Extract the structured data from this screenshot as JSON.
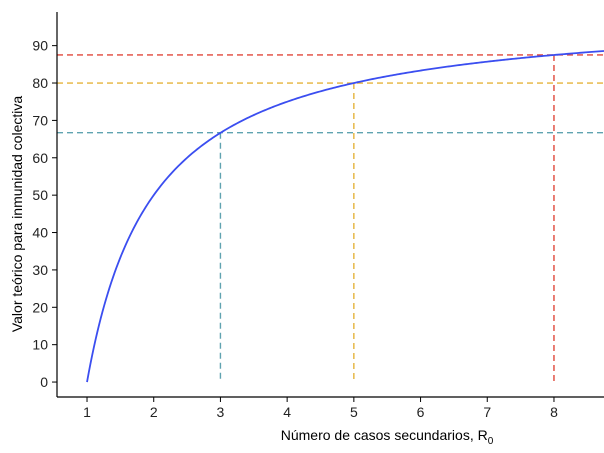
{
  "chart_data": {
    "type": "line",
    "xlabel": "Número de casos secundarios, R",
    "xlabel_subscript": "0",
    "ylabel": "Valor teórico para inmunidad colectiva",
    "xlim": [
      0.55,
      8.75
    ],
    "ylim": [
      -4,
      99
    ],
    "x_ticks": [
      1,
      2,
      3,
      4,
      5,
      6,
      7,
      8
    ],
    "y_ticks": [
      0,
      10,
      20,
      30,
      40,
      50,
      60,
      70,
      80,
      90
    ],
    "grid": false,
    "series": [
      {
        "formula": "100*(1-1/x)",
        "color": "#3b4ef0",
        "x": [
          1,
          1.25,
          1.5,
          2,
          2.5,
          3,
          3.5,
          4,
          4.5,
          5,
          5.5,
          6,
          6.5,
          7,
          7.5,
          8,
          8.75
        ],
        "y": [
          0,
          20,
          33.3,
          50,
          60,
          66.7,
          71.4,
          75,
          77.8,
          80,
          81.8,
          83.3,
          84.6,
          85.7,
          86.7,
          87.5,
          88.6
        ]
      }
    ],
    "reference_lines": [
      {
        "x": 3,
        "y": 66.7,
        "color": "#5fa3b0"
      },
      {
        "x": 5,
        "y": 80,
        "color": "#e5b33b"
      },
      {
        "x": 8,
        "y": 87.5,
        "color": "#e0473a"
      }
    ]
  }
}
